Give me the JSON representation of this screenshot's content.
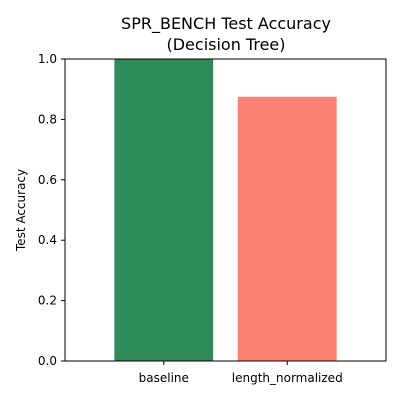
{
  "chart_data": {
    "type": "bar",
    "title": "SPR_BENCH Test Accuracy",
    "subtitle": "(Decision Tree)",
    "xlabel": "",
    "ylabel": "Test Accuracy",
    "categories": [
      "baseline",
      "length_normalized"
    ],
    "values": [
      1.0,
      0.875
    ],
    "bar_colors": [
      "#2e8b57",
      "#fa8072"
    ],
    "ylim": [
      0,
      1.0
    ],
    "yticks": [
      0.0,
      0.2,
      0.4,
      0.6,
      0.8,
      1.0
    ],
    "ytick_labels": [
      "0.0",
      "0.2",
      "0.4",
      "0.6",
      "0.8",
      "1.0"
    ],
    "grid": false,
    "legend": "none"
  }
}
